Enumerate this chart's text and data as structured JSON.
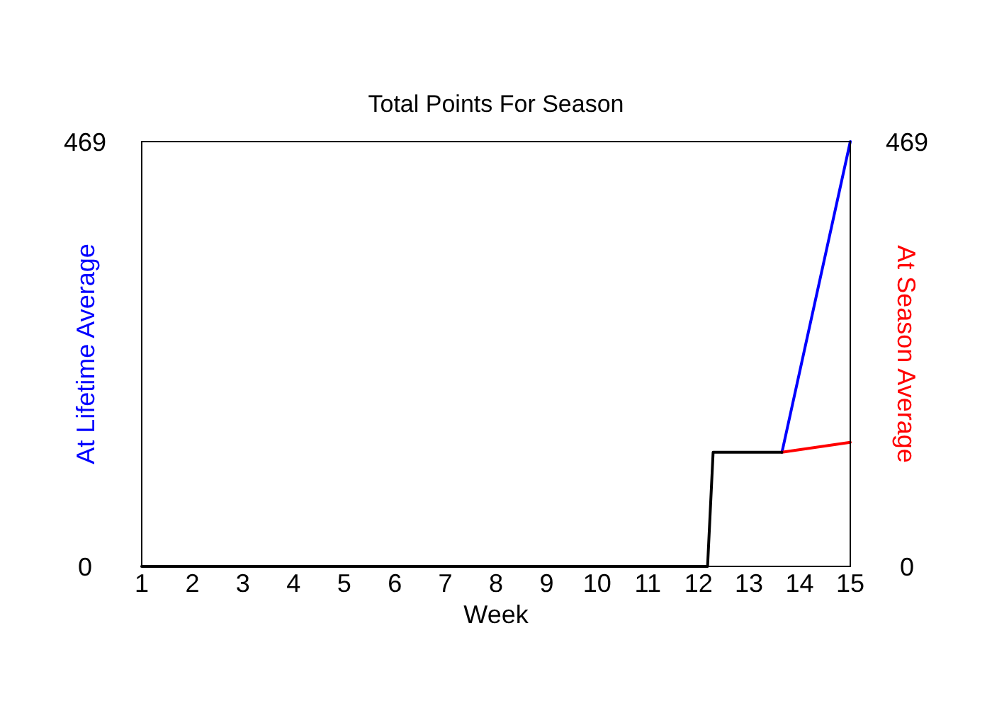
{
  "chart_data": {
    "type": "line",
    "title": "Total Points For Season",
    "xlabel": "Week",
    "ylabel": "At Lifetime Average",
    "y2label": "At Season Average",
    "series": [
      {
        "color": "#0000ff",
        "x": [
          13.65,
          15
        ],
        "values": [
          126,
          469
        ]
      },
      {
        "color": "#ff0000",
        "x": [
          13.65,
          15
        ],
        "values": [
          126,
          137
        ],
        "axis": "y2"
      },
      {
        "color": "#000000",
        "x": [
          1,
          12.18,
          12.29,
          13.65
        ],
        "values": [
          0,
          0,
          126,
          126
        ]
      }
    ],
    "xlim": [
      1,
      15
    ],
    "xticks": [
      1,
      2,
      3,
      4,
      5,
      6,
      7,
      8,
      9,
      10,
      11,
      12,
      13,
      14,
      15
    ],
    "ylim": [
      0,
      469
    ],
    "yticks": [
      0,
      469
    ],
    "y2lim": [
      0,
      469
    ],
    "y2ticks": [
      0,
      469
    ],
    "marker": "none",
    "line_style": "solid"
  }
}
